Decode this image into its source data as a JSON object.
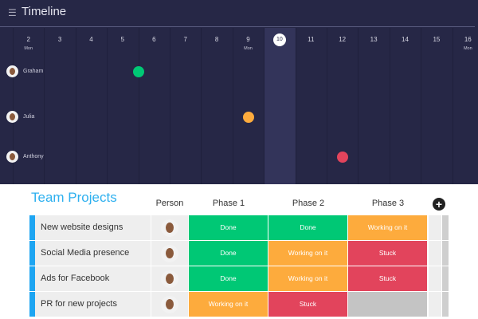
{
  "timeline": {
    "title": "Timeline",
    "menu_icon": "hamburger-icon",
    "days": [
      {
        "d": "2",
        "dow": "Mon"
      },
      {
        "d": "3"
      },
      {
        "d": "4"
      },
      {
        "d": "5"
      },
      {
        "d": "6"
      },
      {
        "d": "7"
      },
      {
        "d": "8"
      },
      {
        "d": "9",
        "dow": "Mon"
      },
      {
        "d": "10",
        "today": true
      },
      {
        "d": "11"
      },
      {
        "d": "12"
      },
      {
        "d": "13"
      },
      {
        "d": "14"
      },
      {
        "d": "15"
      },
      {
        "d": "16",
        "dow": "Mon"
      }
    ],
    "people": [
      {
        "name": "Graham",
        "event_day": 5.5,
        "color": "#00c875"
      },
      {
        "name": "Julia",
        "event_day": 9,
        "color": "#fdab3d"
      },
      {
        "name": "Anthony",
        "event_day": 12,
        "color": "#e2445c"
      }
    ]
  },
  "board": {
    "title": "Team Projects",
    "columns": [
      "Person",
      "Phase 1",
      "Phase 2",
      "Phase 3"
    ],
    "add_icon": "plus-circle-icon",
    "status_colors": {
      "Done": "#00c875",
      "Working on it": "#fdab3d",
      "Stuck": "#e2445c",
      "": "#c4c4c4"
    },
    "rows": [
      {
        "name": "New website designs",
        "phases": [
          "Done",
          "Done",
          "Working on it"
        ]
      },
      {
        "name": "Social Media presence",
        "phases": [
          "Done",
          "Working on it",
          "Stuck"
        ]
      },
      {
        "name": "Ads for Facebook",
        "phases": [
          "Done",
          "Working on it",
          "Stuck"
        ]
      },
      {
        "name": "PR for new projects",
        "phases": [
          "Working on it",
          "Stuck",
          ""
        ]
      }
    ]
  }
}
